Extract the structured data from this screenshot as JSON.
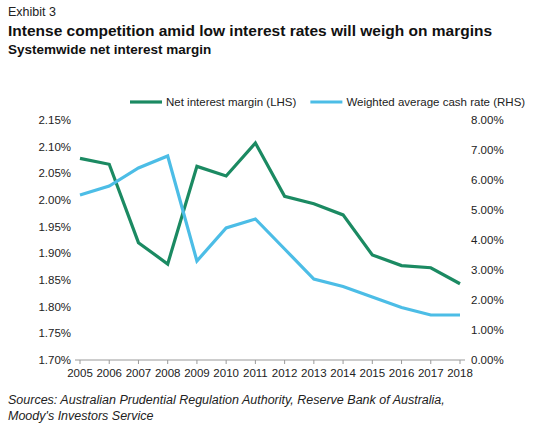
{
  "chart_data": {
    "type": "line",
    "exhibit": "Exhibit 3",
    "title": "Intense competition amid low interest rates will weigh on margins",
    "subtitle": "Systemwide net interest margin",
    "source": "Sources: Australian Prudential Regulation Authority, Reserve Bank of Australia, Moody's Investors Service",
    "categories": [
      "2005",
      "2006",
      "2007",
      "2008",
      "2009",
      "2010",
      "2011",
      "2012",
      "2013",
      "2014",
      "2015",
      "2016",
      "2017",
      "2018"
    ],
    "series": [
      {
        "name": "Net interest margin (LHS)",
        "color": "#1b8a62",
        "values": [
          2.078,
          2.067,
          1.92,
          1.88,
          2.063,
          2.045,
          2.107,
          2.007,
          1.993,
          1.972,
          1.897,
          1.877,
          1.873,
          1.843
        ]
      },
      {
        "name": "Weighted average cash rate (RHS)",
        "color": "#4cbde6",
        "axis": "y2",
        "values": [
          5.5,
          5.8,
          6.4,
          6.8,
          3.3,
          4.4,
          4.7,
          3.7,
          2.7,
          2.45,
          2.1,
          1.75,
          1.5,
          1.5
        ]
      }
    ],
    "ylim": [
      1.7,
      2.15
    ],
    "yticks": [
      {
        "value": 1.7,
        "label": "1.70%"
      },
      {
        "value": 1.75,
        "label": "1.75%"
      },
      {
        "value": 1.8,
        "label": "1.80%"
      },
      {
        "value": 1.85,
        "label": "1.85%"
      },
      {
        "value": 1.9,
        "label": "1.90%"
      },
      {
        "value": 1.95,
        "label": "1.95%"
      },
      {
        "value": 2.0,
        "label": "2.00%"
      },
      {
        "value": 2.05,
        "label": "2.05%"
      },
      {
        "value": 2.1,
        "label": "2.10%"
      },
      {
        "value": 2.15,
        "label": "2.15%"
      }
    ],
    "y2lim": [
      0,
      8
    ],
    "y2ticks": [
      {
        "value": 0,
        "label": "0.00%"
      },
      {
        "value": 1,
        "label": "1.00%"
      },
      {
        "value": 2,
        "label": "2.00%"
      },
      {
        "value": 3,
        "label": "3.00%"
      },
      {
        "value": 4,
        "label": "4.00%"
      },
      {
        "value": 5,
        "label": "5.00%"
      },
      {
        "value": 6,
        "label": "6.00%"
      },
      {
        "value": 7,
        "label": "7.00%"
      },
      {
        "value": 8,
        "label": "8.00%"
      }
    ],
    "grid": false,
    "legend": "top"
  }
}
